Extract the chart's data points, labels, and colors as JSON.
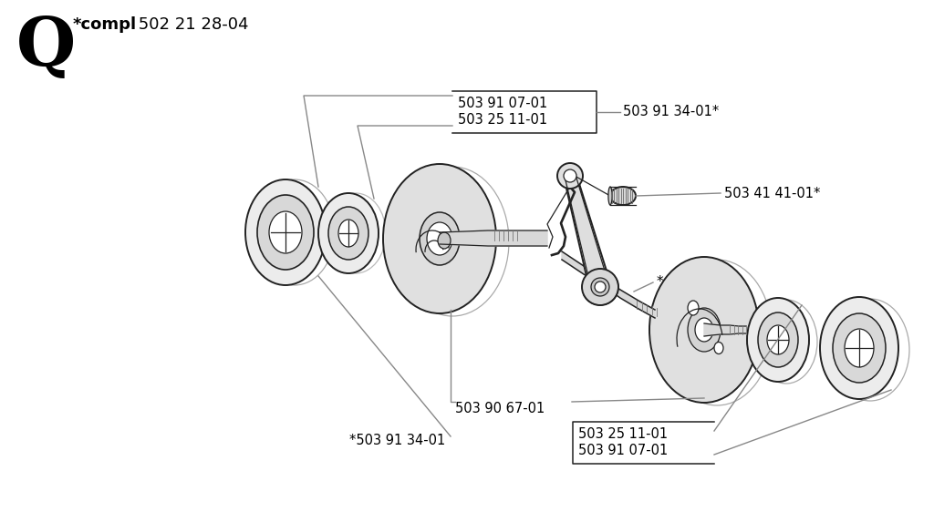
{
  "bg_color": "#ffffff",
  "title_letter": "Q",
  "title_bold_part": "*compl",
  "title_number": " 502 21 28-04",
  "labels": {
    "top_left_box_line1": "503 91 07-01",
    "top_left_box_line2": "503 25 11-01",
    "top_right": "503 91 34-01*",
    "right_mid": "503 41 41-01*",
    "center_star": "*",
    "bottom_center": "503 90 67-01",
    "bottom_left": "*503 91 34-01",
    "bottom_right_box_line1": "503 25 11-01",
    "bottom_right_box_line2": "503 91 07-01"
  },
  "lc": "#555555",
  "ec": "#222222",
  "tc": "#000000",
  "ann_lc": "#888888"
}
